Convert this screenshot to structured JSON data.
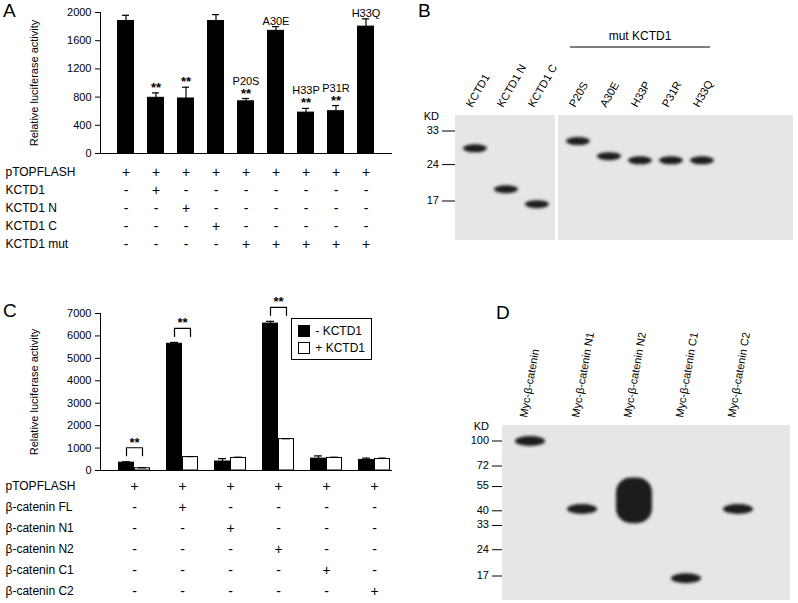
{
  "chart_data": [
    {
      "panel": "A",
      "type": "bar",
      "ylabel": "Relative luciferase activity",
      "ylim": [
        0,
        2000
      ],
      "yticks": [
        0,
        400,
        800,
        1200,
        1600,
        2000
      ],
      "tick_labels": "y",
      "color": "#000000",
      "categories": [
        null,
        null,
        null,
        null,
        "P20S",
        "A30E",
        "H33P",
        "P31R",
        "H33Q"
      ],
      "values": [
        1880,
        790,
        780,
        1880,
        740,
        1740,
        580,
        600,
        1800
      ],
      "errors": [
        80,
        70,
        160,
        90,
        40,
        60,
        60,
        80,
        110
      ],
      "significance": [
        null,
        "**",
        "**",
        null,
        "**",
        null,
        "**",
        "**",
        null
      ],
      "table": {
        "rows": [
          {
            "label": "pTOPFLASH",
            "cells": [
              "+",
              "+",
              "+",
              "+",
              "+",
              "+",
              "+",
              "+",
              "+"
            ]
          },
          {
            "label": "KCTD1",
            "cells": [
              "-",
              "+",
              "-",
              "-",
              "-",
              "-",
              "-",
              "-",
              "-"
            ]
          },
          {
            "label": "KCTD1 N",
            "cells": [
              "-",
              "-",
              "+",
              "-",
              "-",
              "-",
              "-",
              "-",
              "-"
            ]
          },
          {
            "label": "KCTD1 C",
            "cells": [
              "-",
              "-",
              "-",
              "+",
              "-",
              "-",
              "-",
              "-",
              "-"
            ]
          },
          {
            "label": "KCTD1 mut",
            "cells": [
              "-",
              "-",
              "-",
              "-",
              "+",
              "+",
              "+",
              "+",
              "+"
            ]
          }
        ]
      }
    },
    {
      "panel": "C",
      "type": "bar",
      "ylabel": "Relative luciferase activity",
      "ylim": [
        0,
        7000
      ],
      "yticks": [
        0,
        1000,
        2000,
        3000,
        4000,
        5000,
        6000,
        7000
      ],
      "tick_labels": "y",
      "legend": "top-right",
      "categories": [
        null,
        null,
        null,
        null,
        null,
        null
      ],
      "series": [
        {
          "name": "- KCTD1",
          "color": "#000000",
          "values": [
            350,
            5650,
            400,
            6550,
            530,
            470
          ],
          "errors": [
            40,
            60,
            130,
            100,
            120,
            80
          ]
        },
        {
          "name": "+ KCTD1",
          "color": "#ffffff",
          "values": [
            100,
            600,
            560,
            1400,
            560,
            510
          ],
          "errors": [
            20,
            20,
            30,
            20,
            30,
            40
          ]
        }
      ],
      "significance": [
        "**",
        "**",
        null,
        "**",
        null,
        null
      ],
      "table": {
        "rows": [
          {
            "label": "pTOPFLASH",
            "cells": [
              "+",
              "+",
              "+",
              "+",
              "+",
              "+"
            ]
          },
          {
            "label": "β-catenin FL",
            "cells": [
              "-",
              "+",
              "-",
              "-",
              "-",
              "-"
            ]
          },
          {
            "label": "β-catenin N1",
            "cells": [
              "-",
              "-",
              "+",
              "-",
              "-",
              "-"
            ]
          },
          {
            "label": "β-catenin N2",
            "cells": [
              "-",
              "-",
              "-",
              "+",
              "-",
              "-"
            ]
          },
          {
            "label": "β-catenin C1",
            "cells": [
              "-",
              "-",
              "-",
              "-",
              "+",
              "-"
            ]
          },
          {
            "label": "β-catenin C2",
            "cells": [
              "-",
              "-",
              "-",
              "-",
              "-",
              "+"
            ]
          }
        ]
      }
    }
  ],
  "blots": [
    {
      "panel": "B",
      "unit": "KD",
      "markers": [
        33,
        24,
        17
      ],
      "groups": [
        {
          "lanes": [
            {
              "label": "KCTD1",
              "bands": [
                28
              ]
            },
            {
              "label": "KCTD1 N",
              "bands": [
                19
              ]
            },
            {
              "label": "KCTD1 C",
              "bands": [
                16.5
              ]
            }
          ]
        },
        {
          "label": "mut KCTD1",
          "lanes": [
            {
              "label": "P20S",
              "bands": [
                30
              ]
            },
            {
              "label": "A30E",
              "bands": [
                26
              ]
            },
            {
              "label": "H33P",
              "bands": [
                25
              ]
            },
            {
              "label": "P31R",
              "bands": [
                25
              ]
            },
            {
              "label": "H33Q",
              "bands": [
                25
              ]
            }
          ]
        }
      ]
    },
    {
      "panel": "D",
      "unit": "KD",
      "markers": [
        100,
        72,
        55,
        40,
        33,
        24,
        17
      ],
      "groups": [
        {
          "lanes": [
            {
              "label": "Myc-β-catenin",
              "bands": [
                100
              ]
            },
            {
              "label": "Myc-β-catenin N1",
              "bands": [
                41
              ]
            },
            {
              "label": "Myc-β-catenin N2",
              "bands": [
                [
                  34,
                  62
                ]
              ]
            },
            {
              "label": "Myc-β-catenin C1",
              "bands": [
                16.5
              ]
            },
            {
              "label": "Myc-β-catenin C2",
              "bands": [
                41
              ]
            }
          ]
        }
      ]
    }
  ]
}
